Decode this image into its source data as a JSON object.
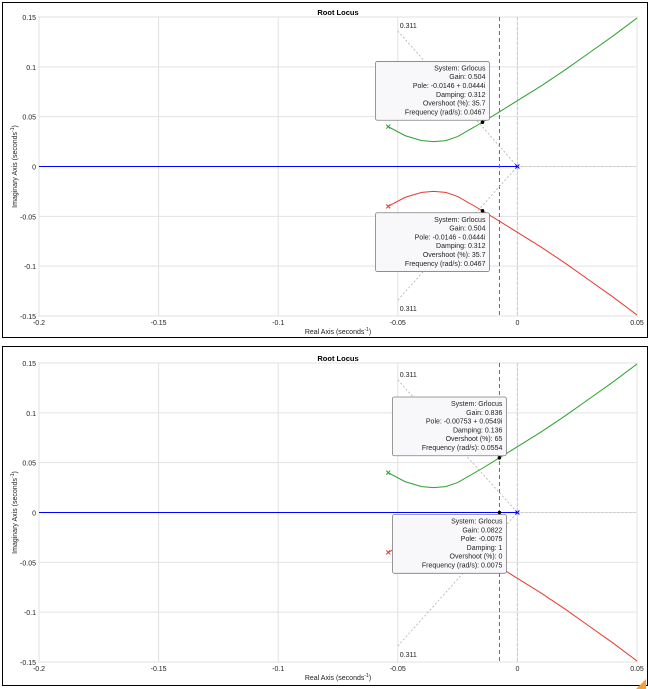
{
  "colors": {
    "gridline": "#e2e2e2",
    "axis_zero_line": "#0000ff",
    "branch_upper": "#2ca02c",
    "branch_lower": "#e8382e",
    "damping_line": "#b0b0b0",
    "marker_line": "#e8382e",
    "datatip_bg": "#f8f8fb",
    "datatip_border": "#7f7f7f",
    "grip": "#f2a13a"
  },
  "chart_data": [
    {
      "type": "line",
      "title": "Root Locus",
      "xlabel": "Real Axis (seconds",
      "xlabel_sup": "-1",
      "xlabel_close": ")",
      "ylabel": "Imaginary Axis (seconds",
      "ylabel_sup": "-1",
      "ylabel_close": ")",
      "xlim": [
        -0.2,
        0.05
      ],
      "ylim": [
        -0.15,
        0.15
      ],
      "xticks": [
        -0.2,
        -0.15,
        -0.1,
        -0.05,
        0,
        0.05
      ],
      "xticklabels": [
        "-0.2",
        "-0.15",
        "-0.1",
        "-0.05",
        "0",
        "0.05"
      ],
      "yticks": [
        -0.15,
        -0.1,
        -0.05,
        0,
        0.05,
        0.1,
        0.15
      ],
      "yticklabels": [
        "-0.15",
        "-0.1",
        "-0.05",
        "0",
        "0.05",
        "0.1",
        "0.15"
      ],
      "grid": true,
      "vertical_marker_x": -0.0075,
      "damping_labels": [
        {
          "text": "0.311",
          "x": -0.05,
          "y": 0.143
        },
        {
          "text": "0.311",
          "x": -0.05,
          "y": -0.141
        }
      ],
      "damping_rays": [
        [
          -0.05,
          0.136,
          0,
          0
        ],
        [
          -0.05,
          -0.134,
          0,
          0
        ]
      ],
      "open_loop_poles": [
        [
          -0.054,
          0.04
        ],
        [
          -0.054,
          -0.04
        ],
        [
          0,
          0
        ]
      ],
      "series": [
        {
          "x": [
            -0.054,
            -0.047,
            -0.04,
            -0.035,
            -0.03,
            -0.025,
            -0.0146,
            -0.0075,
            0,
            0.01,
            0.02,
            0.03,
            0.04,
            0.05
          ],
          "y": [
            0.04,
            0.031,
            0.026,
            0.025,
            0.026,
            0.03,
            0.0444,
            0.0549,
            0.066,
            0.081,
            0.097,
            0.114,
            0.131,
            0.149
          ]
        },
        {
          "x": [
            -0.054,
            -0.047,
            -0.04,
            -0.035,
            -0.03,
            -0.025,
            -0.0146,
            -0.0075,
            0,
            0.01,
            0.02,
            0.03,
            0.04,
            0.05
          ],
          "y": [
            -0.04,
            -0.031,
            -0.026,
            -0.025,
            -0.026,
            -0.03,
            -0.0444,
            -0.0549,
            -0.066,
            -0.081,
            -0.097,
            -0.114,
            -0.131,
            -0.149
          ]
        }
      ],
      "datatips": [
        {
          "point": [
            -0.0146,
            0.0444
          ],
          "anchor": "top",
          "lines": [
            "System: Grlocus",
            "Gain: 0.504",
            "Pole: -0.0146 + 0.0444i",
            "Damping: 0.312",
            "Overshoot (%): 35.7",
            "Frequency (rad/s): 0.0467"
          ]
        },
        {
          "point": [
            -0.0146,
            -0.0444
          ],
          "anchor": "bottom",
          "lines": [
            "System: Grlocus",
            "Gain: 0.504",
            "Pole: -0.0146 - 0.0444i",
            "Damping: 0.312",
            "Overshoot (%): 35.7",
            "Frequency (rad/s): 0.0467"
          ]
        }
      ]
    },
    {
      "type": "line",
      "title": "Root Locus",
      "xlabel": "Real Axis (seconds",
      "xlabel_sup": "-1",
      "xlabel_close": ")",
      "ylabel": "Imaginary Axis (seconds",
      "ylabel_sup": "-1",
      "ylabel_close": ")",
      "xlim": [
        -0.2,
        0.05
      ],
      "ylim": [
        -0.15,
        0.15
      ],
      "xticks": [
        -0.2,
        -0.15,
        -0.1,
        -0.05,
        0,
        0.05
      ],
      "xticklabels": [
        "-0.2",
        "-0.15",
        "-0.1",
        "-0.05",
        "0",
        "0.05"
      ],
      "yticks": [
        -0.15,
        -0.1,
        -0.05,
        0,
        0.05,
        0.1,
        0.15
      ],
      "yticklabels": [
        "-0.15",
        "-0.1",
        "-0.05",
        "0",
        "0.05",
        "0.1",
        "0.15"
      ],
      "grid": true,
      "vertical_marker_x": -0.0075,
      "damping_labels": [
        {
          "text": "0.311",
          "x": -0.05,
          "y": 0.14
        },
        {
          "text": "0.311",
          "x": -0.05,
          "y": -0.141
        }
      ],
      "damping_rays": [
        [
          -0.05,
          0.133,
          0,
          0
        ],
        [
          -0.05,
          -0.134,
          0,
          0
        ]
      ],
      "open_loop_poles": [
        [
          -0.054,
          0.04
        ],
        [
          -0.054,
          -0.04
        ],
        [
          0,
          0
        ]
      ],
      "series": [
        {
          "x": [
            -0.054,
            -0.047,
            -0.04,
            -0.035,
            -0.03,
            -0.025,
            -0.0146,
            -0.0075,
            0,
            0.01,
            0.02,
            0.03,
            0.04,
            0.05
          ],
          "y": [
            0.04,
            0.031,
            0.026,
            0.025,
            0.026,
            0.03,
            0.0444,
            0.0549,
            0.066,
            0.081,
            0.097,
            0.114,
            0.131,
            0.149
          ]
        },
        {
          "x": [
            -0.054,
            -0.047,
            -0.04,
            -0.035,
            -0.03,
            -0.025,
            -0.0146,
            -0.0075,
            0,
            0.01,
            0.02,
            0.03,
            0.04,
            0.05
          ],
          "y": [
            -0.04,
            -0.031,
            -0.026,
            -0.025,
            -0.026,
            -0.03,
            -0.0444,
            -0.0549,
            -0.066,
            -0.081,
            -0.097,
            -0.114,
            -0.131,
            -0.149
          ]
        }
      ],
      "datatips": [
        {
          "point": [
            -0.00753,
            0.0549
          ],
          "anchor": "top",
          "lines": [
            "System: Grlocus",
            "Gain: 0.836",
            "Pole: -0.00753 + 0.0549i",
            "Damping: 0.136",
            "Overshoot (%): 65",
            "Frequency (rad/s): 0.0554"
          ]
        },
        {
          "point": [
            -0.0075,
            0
          ],
          "anchor": "bottom",
          "lines": [
            "System: Grlocus",
            "Gain: 0.0822",
            "Pole: -0.0075",
            "Damping: 1",
            "Overshoot (%): 0",
            "Frequency (rad/s): 0.0075"
          ]
        }
      ]
    }
  ]
}
